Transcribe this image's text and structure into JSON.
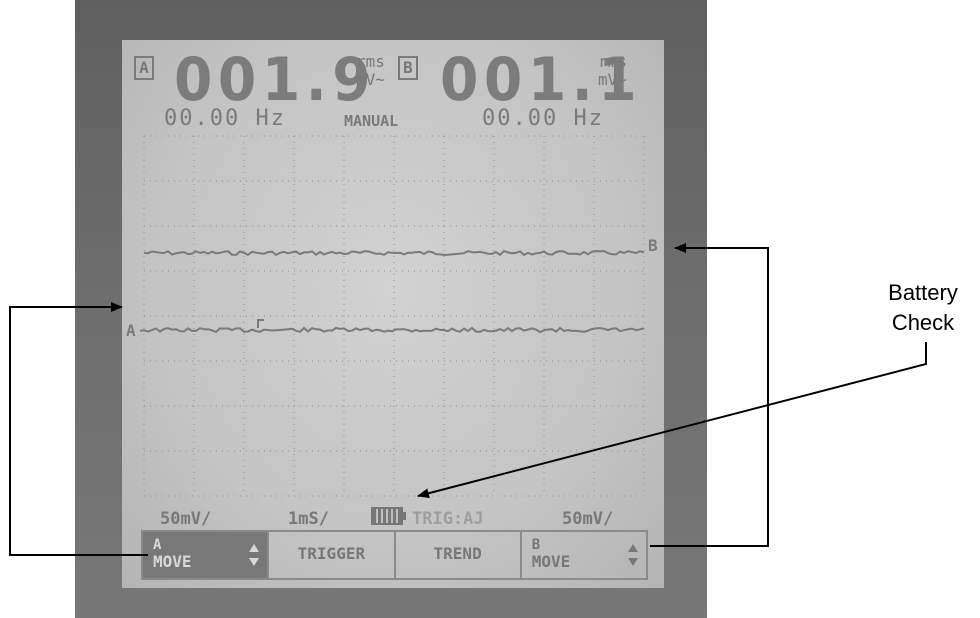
{
  "channel_a": {
    "label": "A",
    "reading": "001.9",
    "unit_top": "rms",
    "unit_bottom": "mV~",
    "frequency": "00.00 Hz"
  },
  "channel_b": {
    "label": "B",
    "reading": "001.1",
    "unit_top": "rms",
    "unit_bottom": "mV~",
    "frequency": "00.00 Hz"
  },
  "mode": "MANUAL",
  "status_bar": {
    "a_scale": "50mV/",
    "timebase": "1mS/",
    "trigger": "TRIG:AJ",
    "b_scale": "50mV/"
  },
  "softkeys": [
    {
      "line1": "A",
      "line2": "MOVE"
    },
    {
      "label": "TRIGGER"
    },
    {
      "label": "TREND"
    },
    {
      "line1": "B",
      "line2": "MOVE"
    }
  ],
  "trace_markers": {
    "a": "A",
    "b": "B"
  },
  "callout": {
    "line1": "Battery",
    "line2": "Check"
  },
  "colors": {
    "lcd_background": "#c8c8c8",
    "lcd_ink": "#787878",
    "bezel": "#6a6a6a",
    "annotation": "#000000"
  }
}
